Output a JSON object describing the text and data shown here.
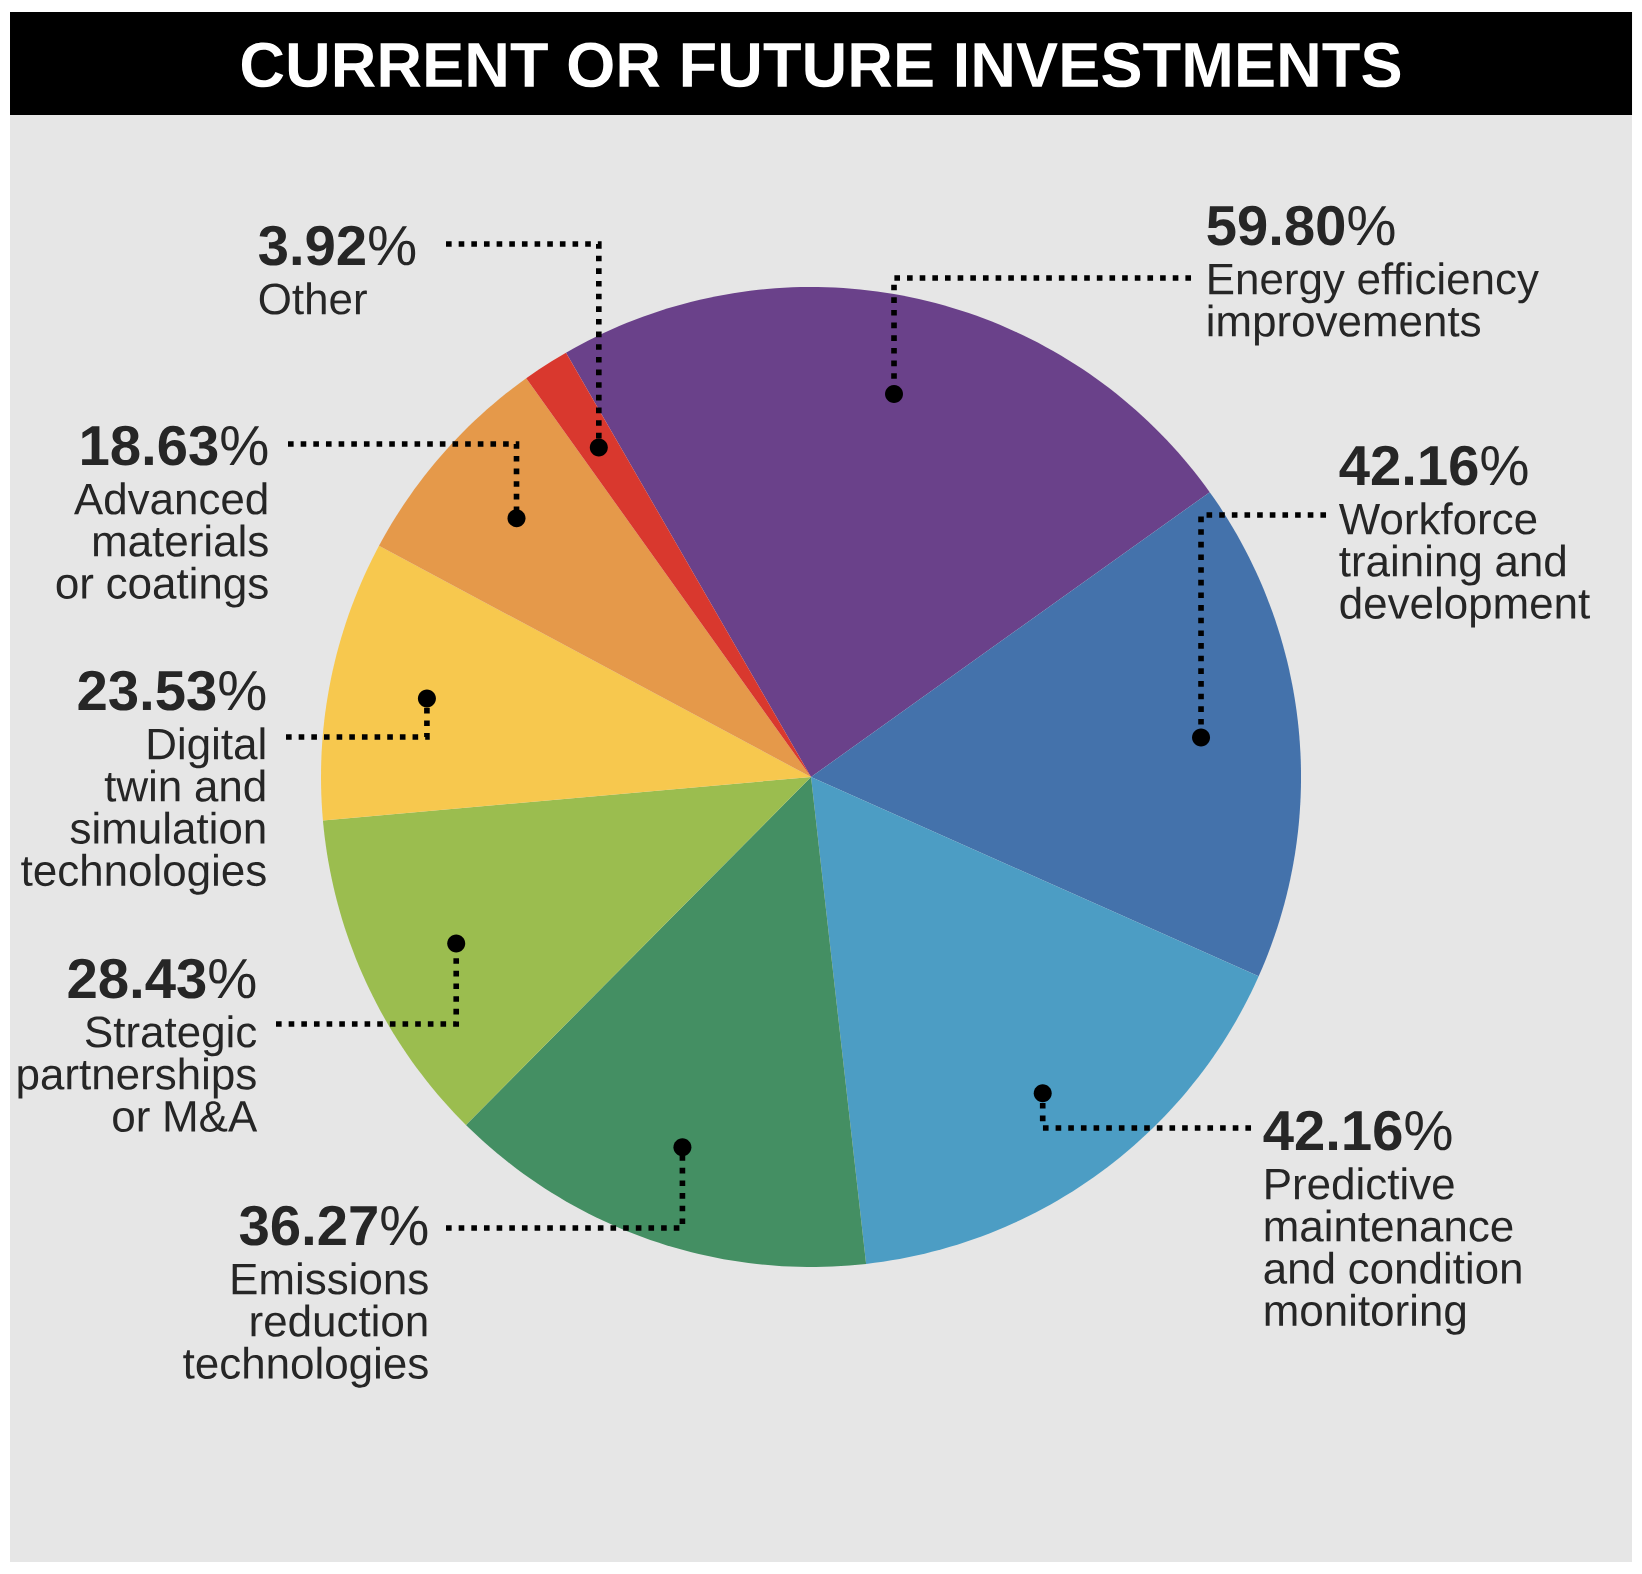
{
  "chart_data": {
    "type": "pie",
    "title": "CURRENT OR FUTURE INVESTMENTS",
    "categories": [
      "Energy efficiency improvements",
      "Workforce training and development",
      "Predictive maintenance and condition monitoring",
      "Emissions reduction technologies",
      "Strategic partnerships or M&A",
      "Digital twin and simulation technologies",
      "Advanced materials or coatings",
      "Other"
    ],
    "values": [
      59.8,
      42.16,
      42.16,
      36.27,
      28.43,
      23.53,
      18.63,
      3.92
    ],
    "value_labels": [
      "**59.80**%",
      "**42.16**%",
      "**42.16**%",
      "**36.27**%",
      "**28.43**%",
      "**23.53**%",
      "**18.63**%",
      "**3.92**%"
    ],
    "colors": [
      "#6a418a",
      "#4472ab",
      "#4c9dc4",
      "#448f63",
      "#9bbd4f",
      "#f7c84e",
      "#e5994a",
      "#d9382e"
    ]
  }
}
